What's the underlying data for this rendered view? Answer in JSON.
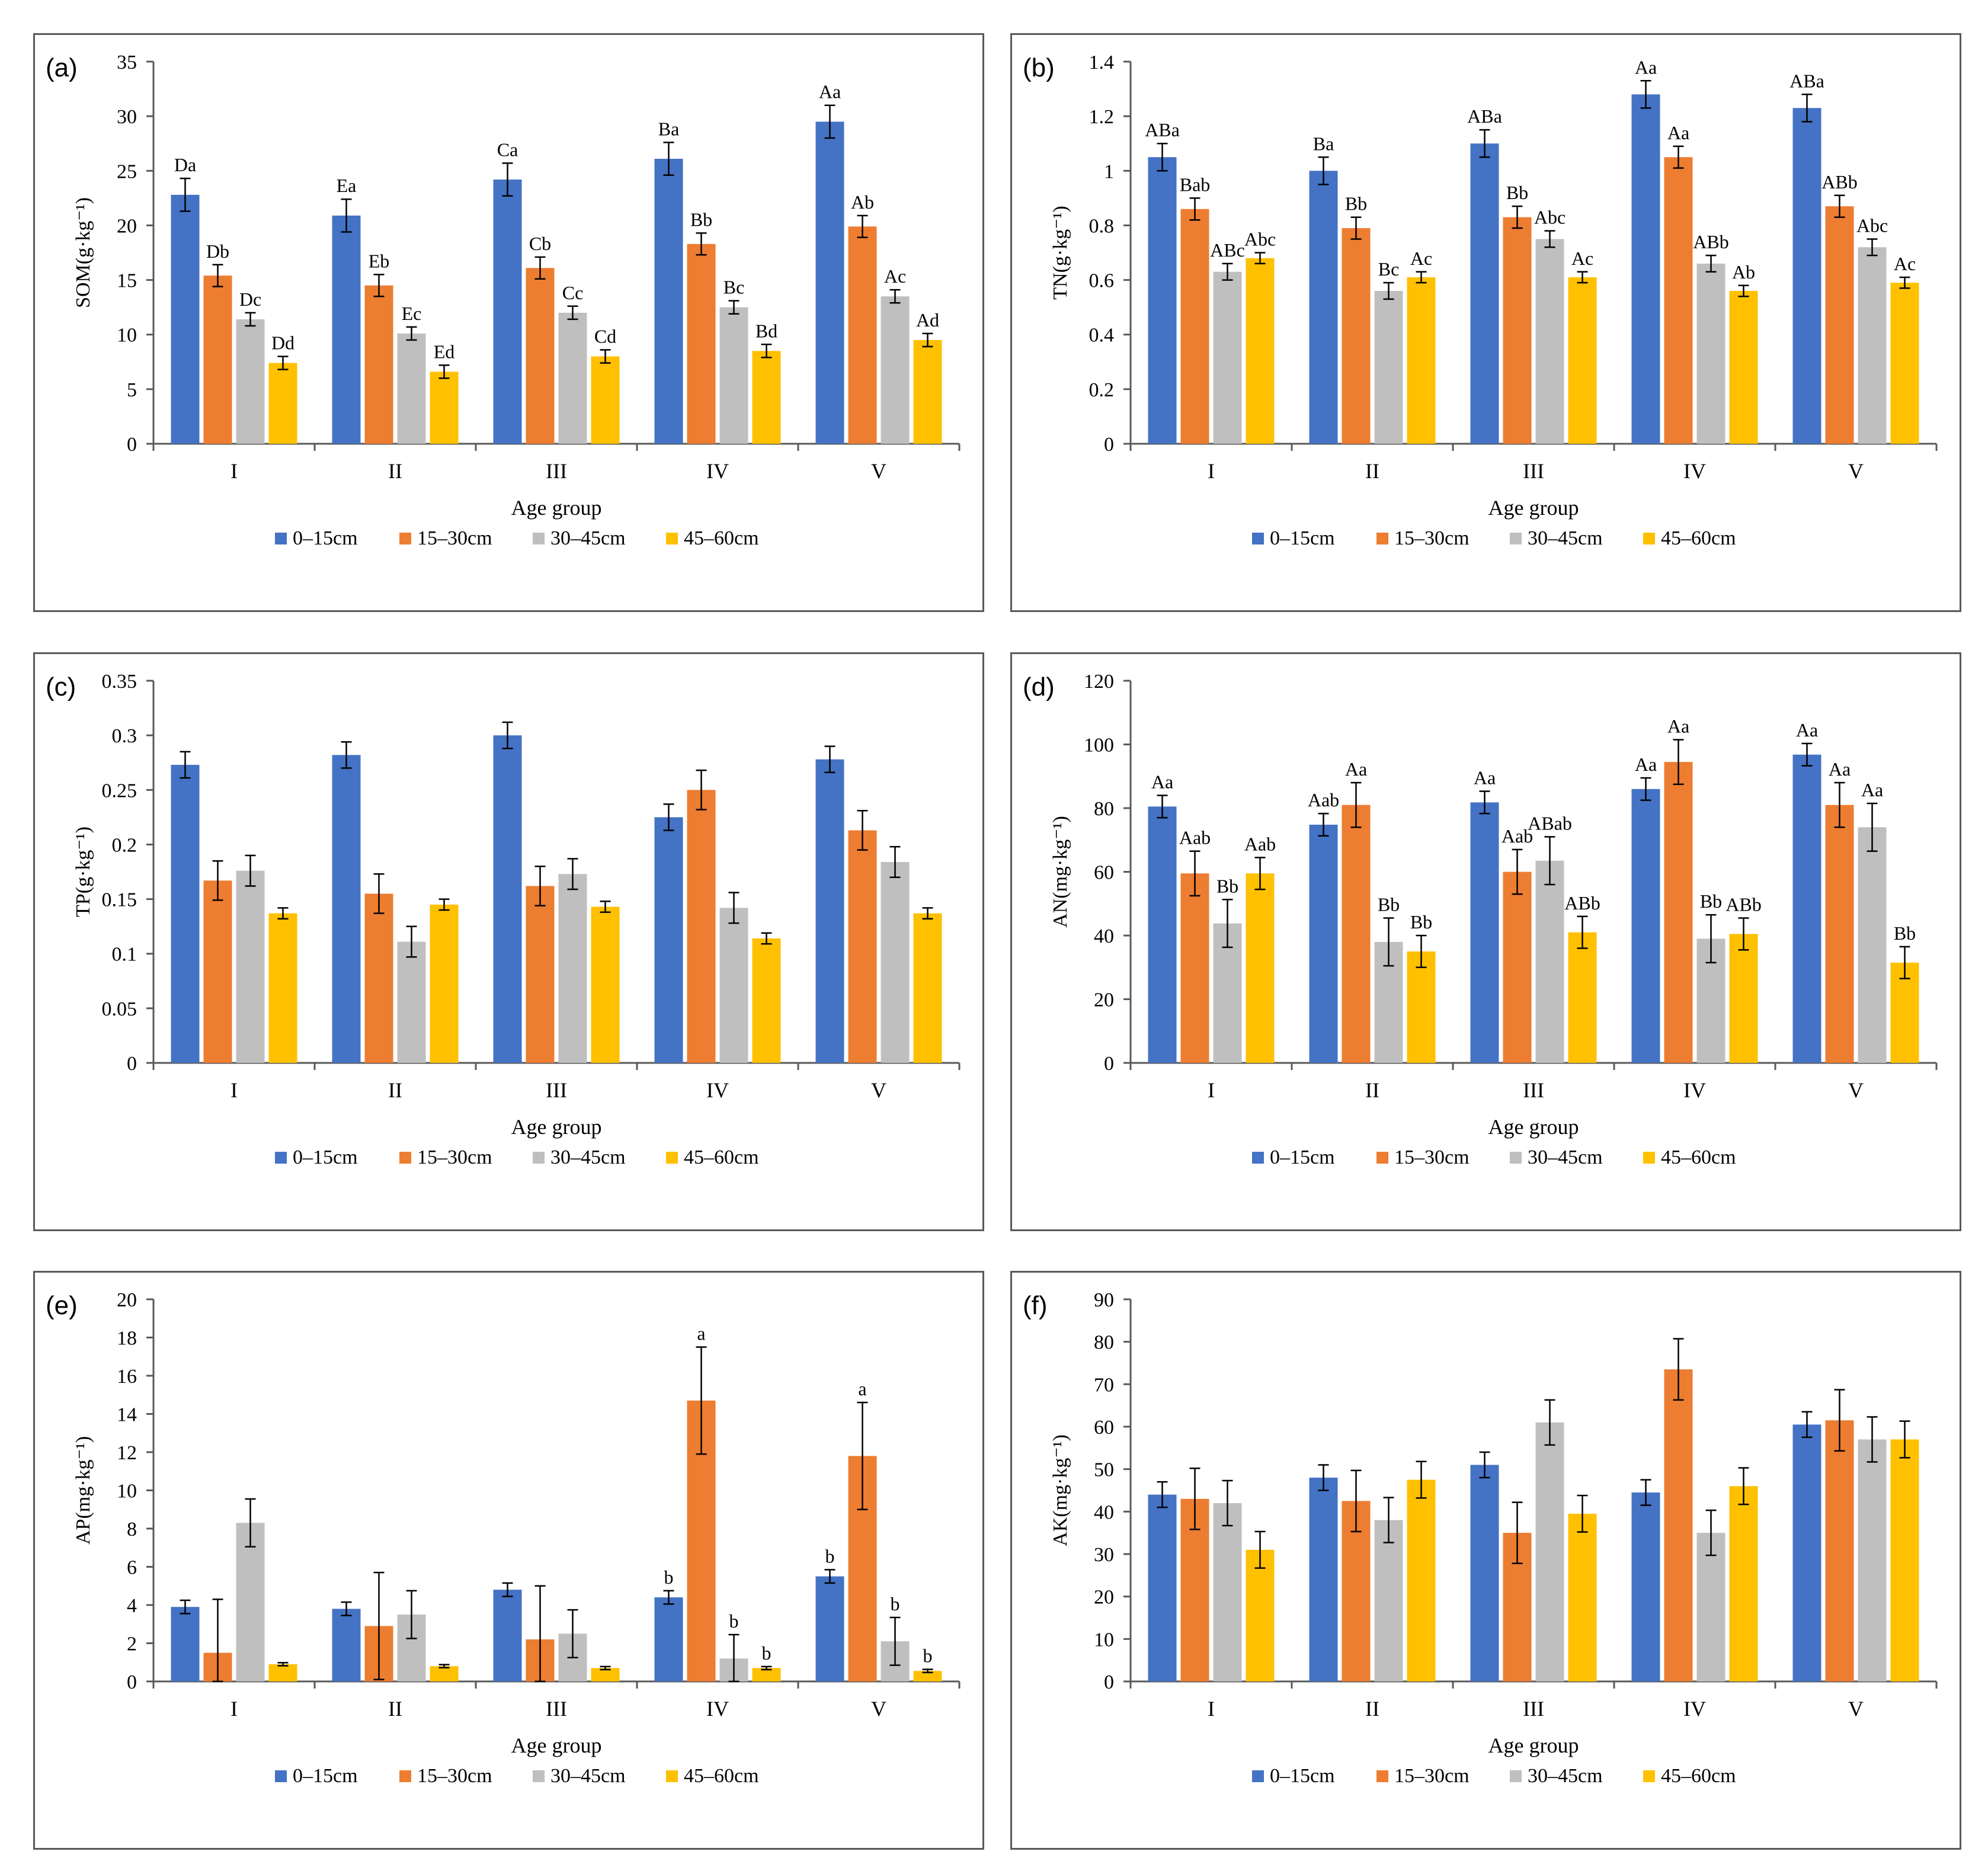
{
  "colors": {
    "s1": "#4472C4",
    "s2": "#ED7D31",
    "s3": "#BFBFBF",
    "s4": "#FFC000",
    "axis": "#595959",
    "text": "#000000"
  },
  "chart_data": [
    {
      "panel_label": "(a)",
      "type": "bar",
      "title": "",
      "xlabel": "Age group",
      "ylabel": "SOM(g·kg⁻¹)",
      "categories": [
        "I",
        "II",
        "III",
        "IV",
        "V"
      ],
      "ylim": [
        0,
        35
      ],
      "ytick_labels": [
        "0",
        "5",
        "10",
        "15",
        "20",
        "25",
        "30",
        "35"
      ],
      "legend": "bottom",
      "grid": false,
      "series": [
        {
          "name": "0–15cm",
          "values": [
            22.8,
            20.9,
            24.2,
            26.1,
            29.5
          ],
          "errors": [
            1.5,
            1.5,
            1.5,
            1.5,
            1.5
          ],
          "labels": [
            "Da",
            "Ea",
            "Ca",
            "Ba",
            "Aa"
          ]
        },
        {
          "name": "15–30cm",
          "values": [
            15.4,
            14.5,
            16.1,
            18.3,
            19.9
          ],
          "errors": [
            1.0,
            1.0,
            1.0,
            1.0,
            1.0
          ],
          "labels": [
            "Db",
            "Eb",
            "Cb",
            "Bb",
            "Ab"
          ]
        },
        {
          "name": "30–45cm",
          "values": [
            11.4,
            10.1,
            12.0,
            12.5,
            13.5
          ],
          "errors": [
            0.6,
            0.6,
            0.6,
            0.6,
            0.6
          ],
          "labels": [
            "Dc",
            "Ec",
            "Cc",
            "Bc",
            "Ac"
          ]
        },
        {
          "name": "45–60cm",
          "values": [
            7.4,
            6.6,
            8.0,
            8.5,
            9.5
          ],
          "errors": [
            0.6,
            0.6,
            0.6,
            0.6,
            0.6
          ],
          "labels": [
            "Dd",
            "Ed",
            "Cd",
            "Bd",
            "Ad"
          ]
        }
      ]
    },
    {
      "panel_label": "(b)",
      "type": "bar",
      "title": "",
      "xlabel": "Age group",
      "ylabel": "TN(g·kg⁻¹)",
      "categories": [
        "I",
        "II",
        "III",
        "IV",
        "V"
      ],
      "ylim": [
        0,
        1.4
      ],
      "ytick_labels": [
        "0",
        "0.2",
        "0.4",
        "0.6",
        "0.8",
        "1",
        "1.2",
        "1.4"
      ],
      "legend": "bottom",
      "grid": false,
      "series": [
        {
          "name": "0–15cm",
          "values": [
            1.05,
            1.0,
            1.1,
            1.28,
            1.23
          ],
          "errors": [
            0.05,
            0.05,
            0.05,
            0.05,
            0.05
          ],
          "labels": [
            "ABa",
            "Ba",
            "ABa",
            "Aa",
            "ABa"
          ]
        },
        {
          "name": "15–30cm",
          "values": [
            0.86,
            0.79,
            0.83,
            1.05,
            0.87
          ],
          "errors": [
            0.04,
            0.04,
            0.04,
            0.04,
            0.04
          ],
          "labels": [
            "Bab",
            "Bb",
            "Bb",
            "Aa",
            "ABb"
          ]
        },
        {
          "name": "30–45cm",
          "values": [
            0.63,
            0.56,
            0.75,
            0.66,
            0.72
          ],
          "errors": [
            0.03,
            0.03,
            0.03,
            0.03,
            0.03
          ],
          "labels": [
            "ABc",
            "Bc",
            "Abc",
            "ABb",
            "Abc"
          ]
        },
        {
          "name": "45–60cm",
          "values": [
            0.68,
            0.61,
            0.61,
            0.56,
            0.59
          ],
          "errors": [
            0.02,
            0.02,
            0.02,
            0.02,
            0.02
          ],
          "labels": [
            "Abc",
            "Ac",
            "Ac",
            "Ab",
            "Ac"
          ]
        }
      ]
    },
    {
      "panel_label": "(c)",
      "type": "bar",
      "title": "",
      "xlabel": "Age group",
      "ylabel": "TP(g·kg⁻¹)",
      "categories": [
        "I",
        "II",
        "III",
        "IV",
        "V"
      ],
      "ylim": [
        0,
        0.35
      ],
      "ytick_labels": [
        "0",
        "0.05",
        "0.1",
        "0.15",
        "0.2",
        "0.25",
        "0.3",
        "0.35"
      ],
      "legend": "bottom",
      "grid": false,
      "series": [
        {
          "name": "0–15cm",
          "values": [
            0.273,
            0.282,
            0.3,
            0.225,
            0.278
          ],
          "errors": [
            0.012,
            0.012,
            0.012,
            0.012,
            0.012
          ],
          "labels": [
            "",
            "",
            "",
            "",
            ""
          ]
        },
        {
          "name": "15–30cm",
          "values": [
            0.167,
            0.155,
            0.162,
            0.25,
            0.213
          ],
          "errors": [
            0.018,
            0.018,
            0.018,
            0.018,
            0.018
          ],
          "labels": [
            "",
            "",
            "",
            "",
            ""
          ]
        },
        {
          "name": "30–45cm",
          "values": [
            0.176,
            0.111,
            0.173,
            0.142,
            0.184
          ],
          "errors": [
            0.014,
            0.014,
            0.014,
            0.014,
            0.014
          ],
          "labels": [
            "",
            "",
            "",
            "",
            ""
          ]
        },
        {
          "name": "45–60cm",
          "values": [
            0.137,
            0.145,
            0.143,
            0.114,
            0.137
          ],
          "errors": [
            0.005,
            0.005,
            0.005,
            0.005,
            0.005
          ],
          "labels": [
            "",
            "",
            "",
            "",
            ""
          ]
        }
      ]
    },
    {
      "panel_label": "(d)",
      "type": "bar",
      "title": "",
      "xlabel": "Age group",
      "ylabel": "AN(mg·kg⁻¹)",
      "categories": [
        "I",
        "II",
        "III",
        "IV",
        "V"
      ],
      "ylim": [
        0,
        120
      ],
      "ytick_labels": [
        "0",
        "20",
        "40",
        "60",
        "80",
        "100",
        "120"
      ],
      "legend": "bottom",
      "grid": false,
      "series": [
        {
          "name": "0–15cm",
          "values": [
            80.5,
            74.8,
            81.8,
            86.0,
            96.8
          ],
          "errors": [
            3.5,
            3.5,
            3.5,
            3.5,
            3.5
          ],
          "labels": [
            "Aa",
            "Aab",
            "Aa",
            "Aa",
            "Aa"
          ]
        },
        {
          "name": "15–30cm",
          "values": [
            59.5,
            81.0,
            60.0,
            94.5,
            81.0
          ],
          "errors": [
            7.0,
            7.0,
            7.0,
            7.0,
            7.0
          ],
          "labels": [
            "Aab",
            "Aa",
            "Aab",
            "Aa",
            "Aa"
          ]
        },
        {
          "name": "30–45cm",
          "values": [
            43.8,
            38.0,
            63.5,
            39.0,
            74.0
          ],
          "errors": [
            7.5,
            7.5,
            7.5,
            7.5,
            7.5
          ],
          "labels": [
            "Bb",
            "Bb",
            "ABab",
            "Bb",
            "Aa"
          ]
        },
        {
          "name": "45–60cm",
          "values": [
            59.5,
            35.0,
            41.0,
            40.5,
            31.5
          ],
          "errors": [
            5.0,
            5.0,
            5.0,
            5.0,
            5.0
          ],
          "labels": [
            "Aab",
            "Bb",
            "ABb",
            "ABb",
            "Bb"
          ]
        }
      ]
    },
    {
      "panel_label": "(e)",
      "type": "bar",
      "title": "",
      "xlabel": "Age group",
      "ylabel": "AP(mg·kg⁻¹)",
      "categories": [
        "I",
        "II",
        "III",
        "IV",
        "V"
      ],
      "ylim": [
        0,
        20
      ],
      "ytick_labels": [
        "0",
        "2",
        "4",
        "6",
        "8",
        "10",
        "12",
        "14",
        "16",
        "18",
        "20"
      ],
      "legend": "bottom",
      "grid": false,
      "series": [
        {
          "name": "0–15cm",
          "values": [
            3.9,
            3.8,
            4.8,
            4.4,
            5.5
          ],
          "errors": [
            0.35,
            0.35,
            0.35,
            0.35,
            0.35
          ],
          "labels": [
            "",
            "",
            "",
            "b",
            "b"
          ]
        },
        {
          "name": "15–30cm",
          "values": [
            1.5,
            2.9,
            2.2,
            14.7,
            11.8
          ],
          "errors": [
            2.8,
            2.8,
            2.8,
            2.8,
            2.8
          ],
          "labels": [
            "",
            "",
            "",
            "a",
            "a"
          ]
        },
        {
          "name": "30–45cm",
          "values": [
            8.3,
            3.5,
            2.5,
            1.2,
            2.1
          ],
          "errors": [
            1.25,
            1.25,
            1.25,
            1.25,
            1.25
          ],
          "labels": [
            "",
            "",
            "",
            "b",
            "b"
          ]
        },
        {
          "name": "45–60cm",
          "values": [
            0.9,
            0.8,
            0.7,
            0.7,
            0.55
          ],
          "errors": [
            0.08,
            0.08,
            0.08,
            0.08,
            0.08
          ],
          "labels": [
            "",
            "",
            "",
            "b",
            "b"
          ]
        }
      ]
    },
    {
      "panel_label": "(f)",
      "type": "bar",
      "title": "",
      "xlabel": "Age group",
      "ylabel": "AK(mg·kg⁻¹)",
      "categories": [
        "I",
        "II",
        "III",
        "IV",
        "V"
      ],
      "ylim": [
        0,
        90
      ],
      "ytick_labels": [
        "0",
        "10",
        "20",
        "30",
        "40",
        "50",
        "60",
        "70",
        "80",
        "90"
      ],
      "legend": "bottom",
      "grid": false,
      "series": [
        {
          "name": "0–15cm",
          "values": [
            44.0,
            48.0,
            51.0,
            44.5,
            60.5
          ],
          "errors": [
            3.0,
            3.0,
            3.0,
            3.0,
            3.0
          ],
          "labels": [
            "",
            "",
            "",
            "",
            ""
          ]
        },
        {
          "name": "15–30cm",
          "values": [
            43.0,
            42.5,
            35.0,
            73.5,
            61.5
          ],
          "errors": [
            7.2,
            7.2,
            7.2,
            7.2,
            7.2
          ],
          "labels": [
            "",
            "",
            "",
            "",
            ""
          ]
        },
        {
          "name": "30–45cm",
          "values": [
            42.0,
            38.0,
            61.0,
            35.0,
            57.0
          ],
          "errors": [
            5.3,
            5.3,
            5.3,
            5.3,
            5.3
          ],
          "labels": [
            "",
            "",
            "",
            "",
            ""
          ]
        },
        {
          "name": "45–60cm",
          "values": [
            31.0,
            47.5,
            39.5,
            46.0,
            57.0
          ],
          "errors": [
            4.3,
            4.3,
            4.3,
            4.3,
            4.3
          ],
          "labels": [
            "",
            "",
            "",
            "",
            ""
          ]
        }
      ]
    }
  ]
}
